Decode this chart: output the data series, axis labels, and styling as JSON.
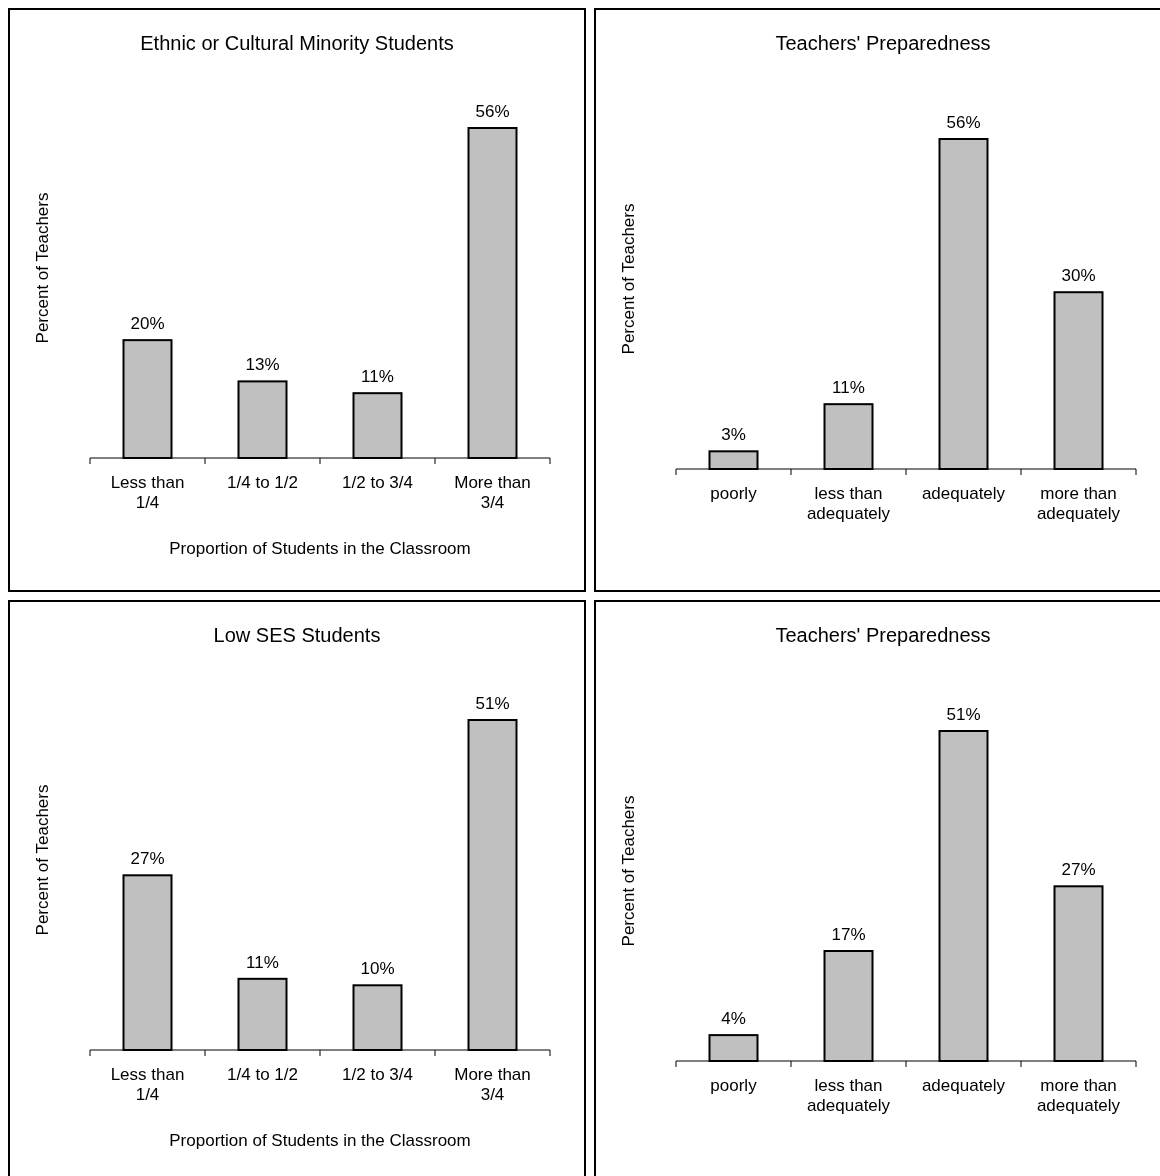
{
  "chart_data": [
    {
      "type": "bar",
      "title": "Ethnic or Cultural Minority Students",
      "xlabel": "Proportion of Students  in the Classroom",
      "ylabel": "Percent of Teachers",
      "categories": [
        "Less than 1/4",
        "1/4 to 1/2",
        "1/2 to 3/4",
        "More than 3/4"
      ],
      "values": [
        20,
        13,
        11,
        56
      ],
      "value_labels": [
        "20%",
        "13%",
        "11%",
        "56%"
      ],
      "color": "#c0c0c0"
    },
    {
      "type": "bar",
      "title": "Teachers' Preparedness",
      "ylabel": "Percent of Teachers",
      "categories": [
        "poorly",
        "less than adequately",
        "adequately",
        "more than adequately"
      ],
      "values": [
        3,
        11,
        56,
        30
      ],
      "value_labels": [
        "3%",
        "11%",
        "56%",
        "30%"
      ],
      "color": "#c0c0c0"
    },
    {
      "type": "bar",
      "title": "Low SES Students",
      "xlabel": "Proportion of Students  in the Classroom",
      "ylabel": "Percent of Teachers",
      "categories": [
        "Less than 1/4",
        "1/4 to 1/2",
        "1/2 to 3/4",
        "More than 3/4"
      ],
      "values": [
        27,
        11,
        10,
        51
      ],
      "value_labels": [
        "27%",
        "11%",
        "10%",
        "51%"
      ],
      "color": "#c0c0c0"
    },
    {
      "type": "bar",
      "title": "Teachers' Preparedness",
      "ylabel": "Percent of Teachers",
      "categories": [
        "poorly",
        "less than adequately",
        "adequately",
        "more than adequately"
      ],
      "values": [
        4,
        17,
        51,
        27
      ],
      "value_labels": [
        "4%",
        "17%",
        "51%",
        "27%"
      ],
      "color": "#c0c0c0"
    }
  ]
}
